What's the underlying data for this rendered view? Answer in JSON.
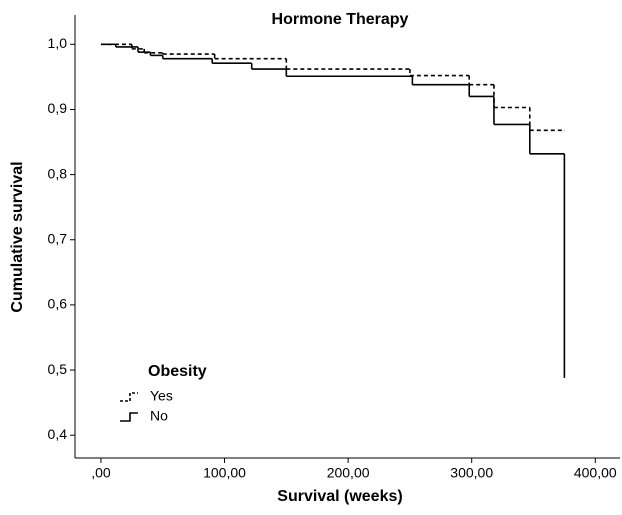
{
  "chart_data": {
    "type": "line",
    "step": true,
    "title": "Hormone Therapy",
    "x_label": "Survival (weeks)",
    "y_label": "Cumulative survival",
    "legend_title": "Obesity",
    "legend": "lower-left",
    "xlim": [
      -21,
      420
    ],
    "ylim": [
      0.365,
      1.045
    ],
    "xticks": [
      {
        "value": 0,
        "label": ",00"
      },
      {
        "value": 100,
        "label": "100,00"
      },
      {
        "value": 200,
        "label": "200,00"
      },
      {
        "value": 300,
        "label": "300,00"
      },
      {
        "value": 400,
        "label": "400,00"
      }
    ],
    "yticks": [
      {
        "value": 0.4,
        "label": "0,4"
      },
      {
        "value": 0.5,
        "label": "0,5"
      },
      {
        "value": 0.6,
        "label": "0,6"
      },
      {
        "value": 0.7,
        "label": "0,7"
      },
      {
        "value": 0.8,
        "label": "0,8"
      },
      {
        "value": 0.9,
        "label": "0,9"
      },
      {
        "value": 1.0,
        "label": "1,0"
      }
    ],
    "series": [
      {
        "name": "Yes",
        "color": "#000000",
        "dash": "4,3",
        "x": [
          0,
          25,
          35,
          50,
          92,
          150,
          250,
          298,
          318,
          347,
          375
        ],
        "values": [
          1.0,
          0.993,
          0.987,
          0.985,
          0.978,
          0.962,
          0.952,
          0.938,
          0.903,
          0.868,
          0.868
        ]
      },
      {
        "name": "No",
        "color": "#000000",
        "dash": "none",
        "x": [
          0,
          12,
          30,
          40,
          50,
          90,
          122,
          150,
          252,
          298,
          318,
          347,
          375
        ],
        "values": [
          1.0,
          0.996,
          0.988,
          0.983,
          0.978,
          0.971,
          0.962,
          0.951,
          0.938,
          0.92,
          0.877,
          0.832,
          0.488
        ]
      }
    ]
  }
}
